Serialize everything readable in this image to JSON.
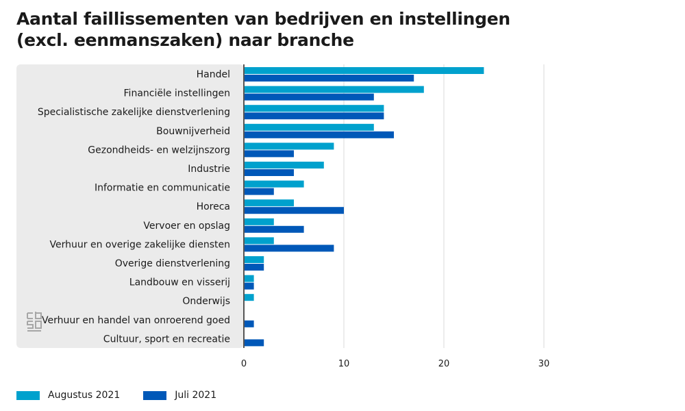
{
  "chart_data": {
    "type": "bar",
    "orientation": "horizontal",
    "title": "Aantal faillissementen van bedrijven en instellingen (excl. eenmanszaken) naar branche",
    "xlabel": "",
    "ylabel": "",
    "xlim": [
      0,
      30
    ],
    "xticks": [
      0,
      10,
      20,
      30
    ],
    "grid": true,
    "legend_position": "bottom-left",
    "categories": [
      "Handel",
      "Financiële instellingen",
      "Specialistische zakelijke dienstverlening",
      "Bouwnijverheid",
      "Gezondheids- en welzijnszorg",
      "Industrie",
      "Informatie en communicatie",
      "Horeca",
      "Vervoer en opslag",
      "Verhuur en overige zakelijke diensten",
      "Overige dienstverlening",
      "Landbouw en visserij",
      "Onderwijs",
      "Verhuur en handel van onroerend goed",
      "Cultuur, sport en recreatie"
    ],
    "series": [
      {
        "name": "Augustus 2021",
        "color": "#00a1cd",
        "values": [
          24,
          18,
          14,
          13,
          9,
          8,
          6,
          5,
          3,
          3,
          2,
          1,
          1,
          0,
          0
        ]
      },
      {
        "name": "Juli 2021",
        "color": "#0058b8",
        "values": [
          17,
          13,
          14,
          15,
          5,
          5,
          3,
          10,
          6,
          9,
          2,
          1,
          0,
          1,
          2
        ]
      }
    ]
  },
  "colors": {
    "panel_background": "#ebebeb",
    "gridline": "#d8d8d8",
    "axis": "#555555",
    "logo": "#a6a6a6"
  },
  "logo": {
    "icon": "cbs-logo-icon",
    "text": "cbs"
  }
}
